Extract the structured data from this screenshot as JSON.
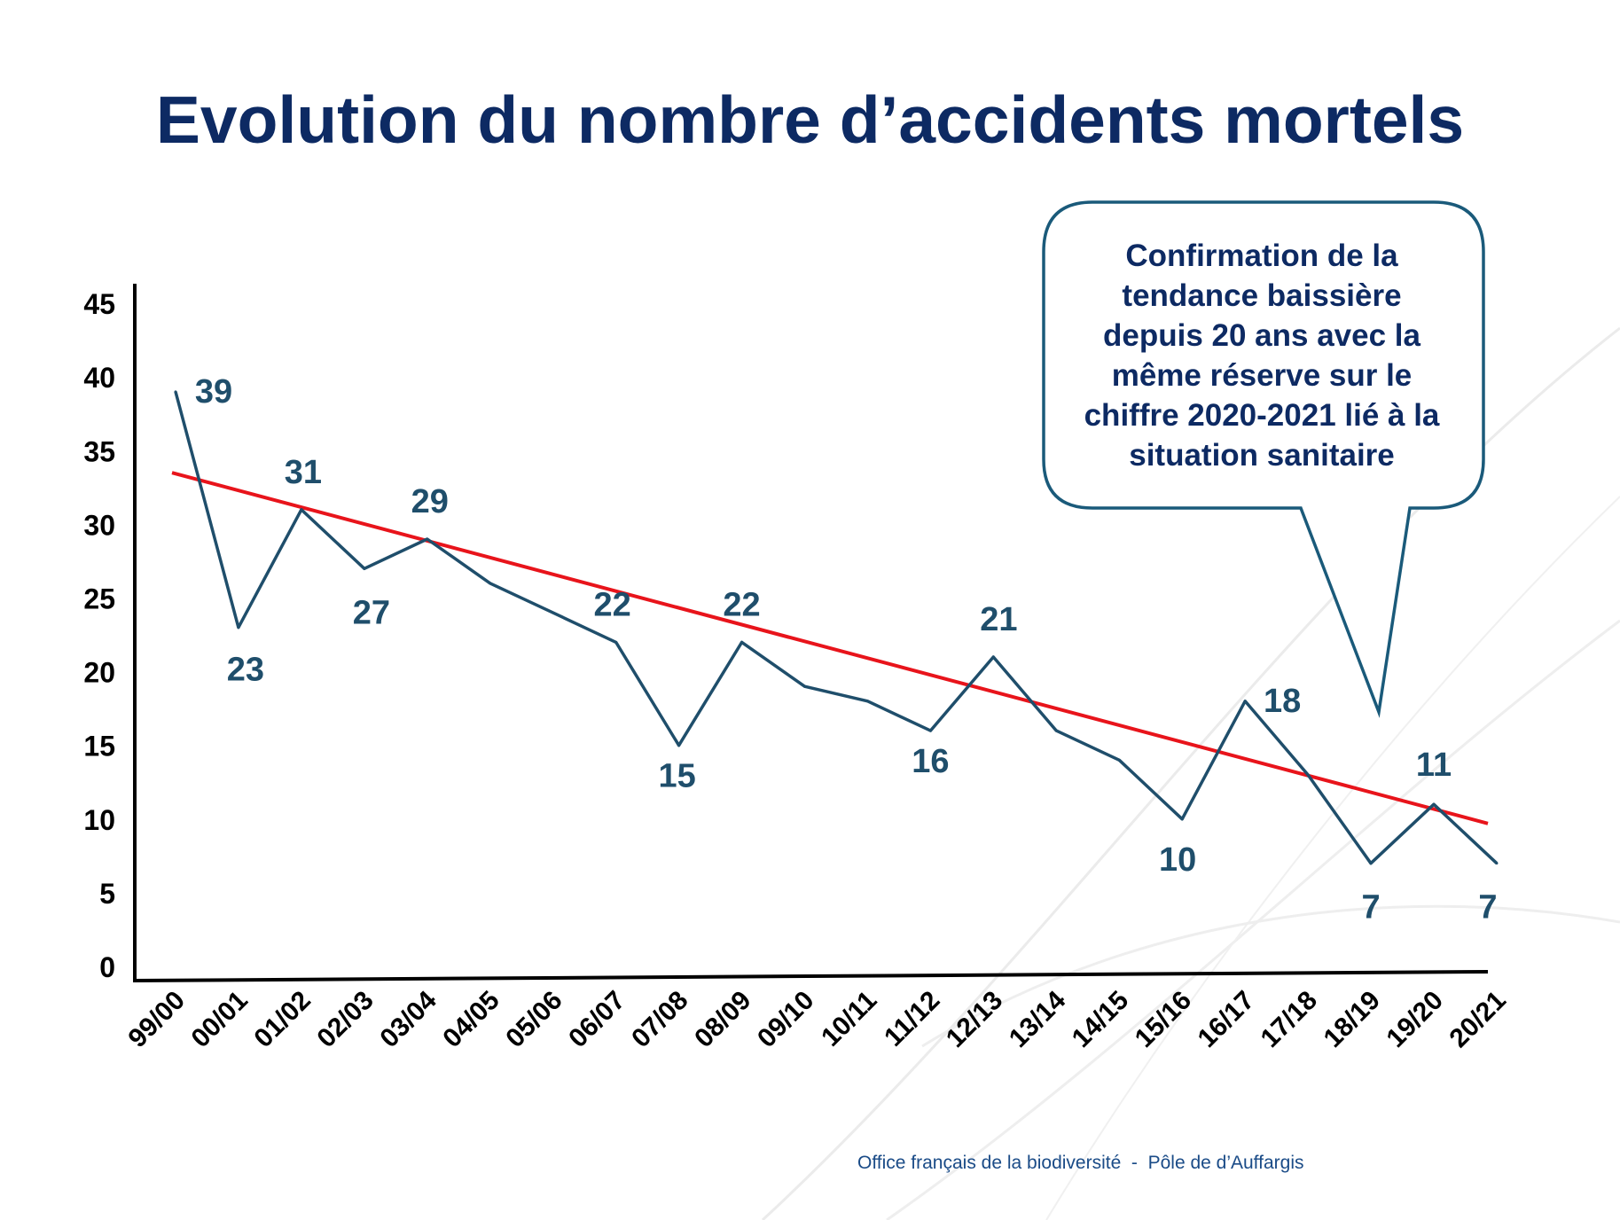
{
  "title": "Evolution du nombre d’accidents mortels",
  "callout": {
    "lines": [
      "Confirmation de la",
      "tendance baissière",
      "depuis 20 ans avec la",
      "même réserve sur le",
      "chiffre 2020-2021 lié à la",
      "situation sanitaire"
    ]
  },
  "footer": "Office français de la biodiversité  -  Pôle de d’Auffargis",
  "colors": {
    "title": "#0d2a63",
    "series_line": "#1f4e6b",
    "trend_line": "#e8141b",
    "callout_border": "#1a5a7a",
    "footer": "#1a4b87"
  },
  "chart_data": {
    "type": "line",
    "title": "",
    "xlabel": "",
    "ylabel": "",
    "ylim": [
      0,
      45
    ],
    "yticks": [
      0,
      5,
      10,
      15,
      20,
      25,
      30,
      35,
      40,
      45
    ],
    "grid": false,
    "legend": "none",
    "categories": [
      "99/00",
      "00/01",
      "01/02",
      "02/03",
      "03/04",
      "04/05",
      "05/06",
      "06/07",
      "07/08",
      "08/09",
      "09/10",
      "10/11",
      "11/12",
      "12/13",
      "13/14",
      "14/15",
      "15/16",
      "16/17",
      "17/18",
      "18/19",
      "19/20",
      "20/21"
    ],
    "series": [
      {
        "values": [
          39,
          23,
          31,
          27,
          29,
          26,
          24,
          22,
          15,
          22,
          19,
          18,
          16,
          21,
          16,
          14,
          10,
          18,
          13,
          7,
          11,
          7
        ]
      }
    ],
    "data_labels": {
      "indices": [
        0,
        1,
        2,
        3,
        4,
        7,
        8,
        9,
        12,
        13,
        16,
        17,
        19,
        20,
        21
      ],
      "texts": [
        "39",
        "23",
        "31",
        "27",
        "29",
        "22",
        "15",
        "22",
        "16",
        "21",
        "10",
        "18",
        "7",
        "11",
        "7"
      ]
    },
    "trendline": {
      "type": "linear",
      "start": 33.5,
      "end": 9.7
    }
  }
}
